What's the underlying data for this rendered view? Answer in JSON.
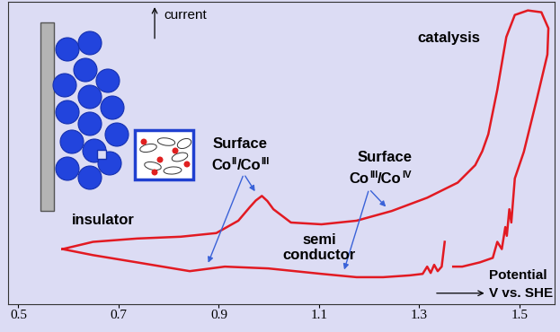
{
  "chart_data": {
    "type": "line",
    "x": [
      0.588,
      0.649,
      0.737,
      0.824,
      0.895,
      0.939,
      0.962,
      0.974,
      0.986,
      0.997,
      1.009,
      1.044,
      1.105,
      1.175,
      1.245,
      1.316,
      1.377,
      1.412,
      1.426,
      1.438,
      1.456,
      1.474,
      1.491,
      1.517,
      1.544,
      1.558,
      1.556,
      1.535,
      1.509,
      1.491,
      1.484,
      1.48,
      1.475,
      1.472,
      1.465,
      1.456,
      1.447,
      1.421,
      1.386,
      1.368,
      1.36,
      1.351,
      1.345,
      1.337,
      1.33,
      1.323,
      1.316,
      1.307,
      1.281,
      1.228,
      1.175,
      1.105,
      0.999,
      0.912,
      0.842,
      0.737,
      0.649,
      0.588
    ],
    "series": [
      {
        "color": "#e21a22",
        "values": [
          18.1,
          20.5,
          21.6,
          22.2,
          23.4,
          27.5,
          32.0,
          34.2,
          35.7,
          34.0,
          31.3,
          26.9,
          26.3,
          27.5,
          30.7,
          35.1,
          40.1,
          45.9,
          50.5,
          56.1,
          70.8,
          88.3,
          95.6,
          97.1,
          96.5,
          91.2,
          82.5,
          67.8,
          50.3,
          41.5,
          26.9,
          31.3,
          22.5,
          25.4,
          18.1,
          20.5,
          15.2,
          13.7,
          12.3,
          12.3,
          null,
          20.5,
          12.3,
          10.8,
          12.9,
          10.2,
          12.3,
          9.9,
          9.4,
          8.8,
          8.8,
          9.9,
          11.7,
          12.3,
          10.8,
          13.7,
          16.1,
          18.1
        ]
      }
    ],
    "xlim": [
      0.48,
      1.57
    ],
    "xticks": [
      0.5,
      0.7,
      0.9,
      1.1,
      1.3,
      1.5
    ],
    "ylim": [
      0,
      100
    ],
    "tick_labels": "x",
    "annotations": [
      {
        "text": "current"
      },
      {
        "text": "catalysis"
      },
      {
        "text": "insulator"
      },
      {
        "text": "semi\nconductor"
      },
      {
        "text": "Surface",
        "formula": [
          {
            "text": "Co"
          },
          {
            "text": "II",
            "sup": true
          },
          {
            "text": "/Co"
          },
          {
            "text": "III",
            "sup": true
          }
        ]
      },
      {
        "text": "Surface",
        "formula": [
          {
            "text": "Co"
          },
          {
            "text": "III",
            "sup": true
          },
          {
            "text": "/Co"
          },
          {
            "text": "IV",
            "sup": true
          }
        ]
      },
      {
        "text": "Potential"
      },
      {
        "text": "V vs. SHE"
      }
    ]
  }
}
